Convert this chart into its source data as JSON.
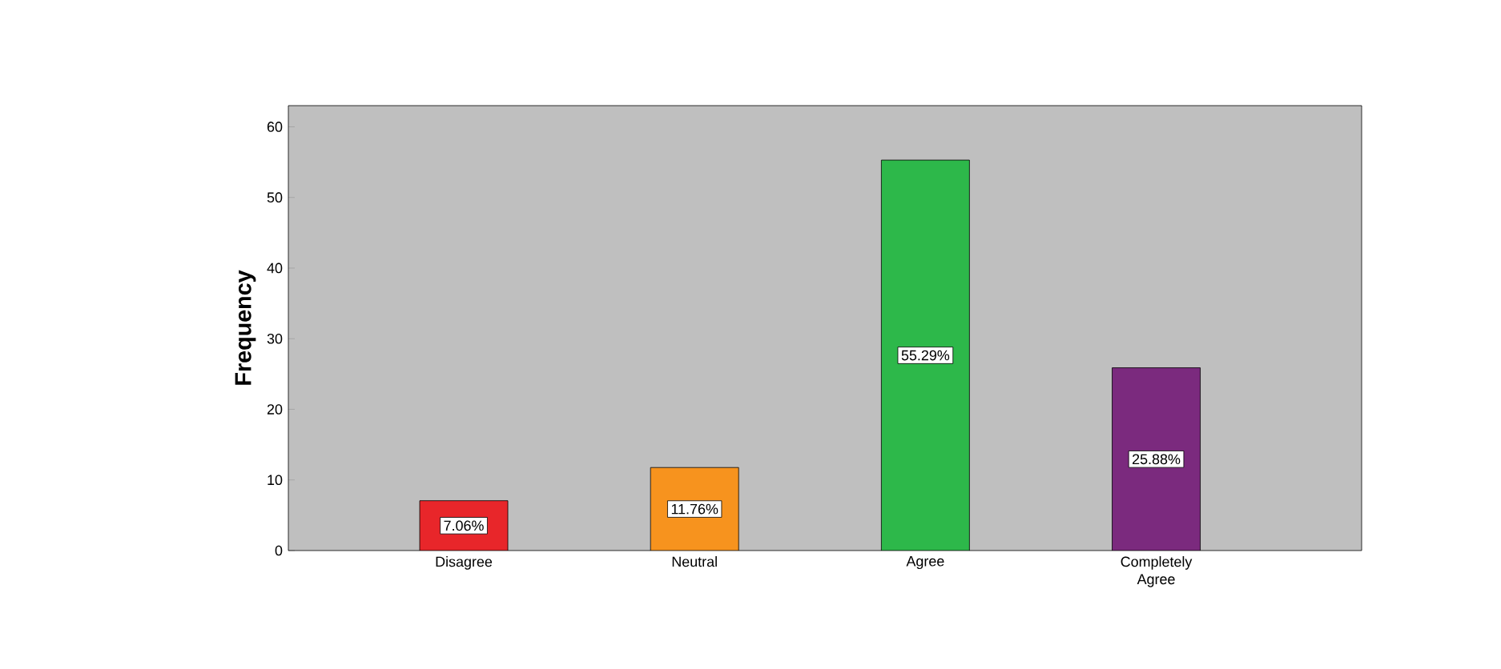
{
  "chart_data": {
    "type": "bar",
    "ylabel": "Frequency",
    "categories": [
      "Disagree",
      "Neutral",
      "Agree",
      "Completely Agree"
    ],
    "values": [
      7.06,
      11.76,
      55.29,
      25.88
    ],
    "colors": [
      "#e8262a",
      "#f7931e",
      "#2db84a",
      "#7b2a7e"
    ],
    "value_labels": [
      "7.06%",
      "11.76%",
      "55.29%",
      "25.88%"
    ],
    "ylim": [
      0,
      63
    ],
    "yticks": [
      0,
      10,
      20,
      30,
      40,
      50,
      60
    ],
    "grid": false
  }
}
